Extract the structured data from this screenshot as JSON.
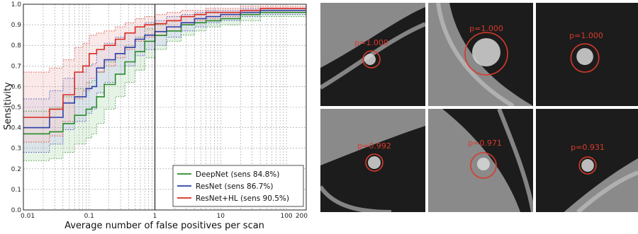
{
  "chart_data": {
    "type": "line",
    "title": "",
    "xlabel": "Average number of false positives per scan",
    "ylabel": "Sensitivity",
    "xscale": "log",
    "xlim": [
      0.01,
      200
    ],
    "ylim": [
      0,
      1
    ],
    "grid": true,
    "legend_position": "bottom-right",
    "x_ticks": [
      {
        "v": 0.01,
        "label": "0.01"
      },
      {
        "v": 0.1,
        "label": "0.1"
      },
      {
        "v": 1,
        "label": "1"
      },
      {
        "v": 10,
        "label": "10"
      },
      {
        "v": 100,
        "label": "100"
      },
      {
        "v": 200,
        "label": "200"
      }
    ],
    "y_ticks": [
      "0.0",
      "0.1",
      "0.2",
      "0.3",
      "0.4",
      "0.5",
      "0.6",
      "0.7",
      "0.8",
      "0.9",
      "1.0"
    ],
    "reference_line_x": 1,
    "series": [
      {
        "name": "DeepNet (sens 84.8%)",
        "color": "#2a8a2a",
        "band_color": "#c8e6c8",
        "x": [
          0.01,
          0.018,
          0.025,
          0.04,
          0.06,
          0.09,
          0.11,
          0.13,
          0.17,
          0.25,
          0.35,
          0.5,
          0.7,
          1.0,
          1.5,
          2.5,
          4,
          6,
          10,
          20,
          40,
          200
        ],
        "y": [
          0.37,
          0.37,
          0.38,
          0.42,
          0.46,
          0.49,
          0.5,
          0.55,
          0.61,
          0.66,
          0.72,
          0.77,
          0.82,
          0.848,
          0.87,
          0.9,
          0.91,
          0.92,
          0.93,
          0.95,
          0.96,
          0.96
        ],
        "lower": [
          0.24,
          0.24,
          0.25,
          0.28,
          0.32,
          0.35,
          0.37,
          0.42,
          0.49,
          0.55,
          0.62,
          0.68,
          0.74,
          0.78,
          0.82,
          0.85,
          0.87,
          0.89,
          0.9,
          0.92,
          0.94,
          0.94
        ],
        "upper": [
          0.48,
          0.48,
          0.5,
          0.55,
          0.59,
          0.62,
          0.63,
          0.67,
          0.72,
          0.76,
          0.8,
          0.84,
          0.88,
          0.9,
          0.92,
          0.94,
          0.95,
          0.96,
          0.96,
          0.97,
          0.98,
          0.98
        ]
      },
      {
        "name": "ResNet (sens 86.7%)",
        "color": "#2c3ea8",
        "band_color": "#ccd0ee",
        "x": [
          0.01,
          0.018,
          0.025,
          0.04,
          0.06,
          0.09,
          0.11,
          0.13,
          0.17,
          0.25,
          0.35,
          0.5,
          0.7,
          1.0,
          1.5,
          2.5,
          4,
          6,
          10,
          20,
          40,
          200
        ],
        "y": [
          0.4,
          0.4,
          0.45,
          0.52,
          0.55,
          0.59,
          0.6,
          0.69,
          0.73,
          0.76,
          0.79,
          0.83,
          0.85,
          0.867,
          0.89,
          0.91,
          0.93,
          0.94,
          0.95,
          0.96,
          0.97,
          0.97
        ],
        "lower": [
          0.28,
          0.28,
          0.32,
          0.39,
          0.43,
          0.47,
          0.49,
          0.57,
          0.62,
          0.66,
          0.7,
          0.75,
          0.78,
          0.8,
          0.84,
          0.87,
          0.89,
          0.91,
          0.92,
          0.94,
          0.95,
          0.95
        ],
        "upper": [
          0.54,
          0.54,
          0.58,
          0.64,
          0.67,
          0.7,
          0.71,
          0.78,
          0.81,
          0.84,
          0.86,
          0.89,
          0.91,
          0.92,
          0.94,
          0.95,
          0.96,
          0.97,
          0.97,
          0.98,
          0.98,
          0.98
        ]
      },
      {
        "name": "ResNet+HL (sens 90.5%)",
        "color": "#d62a20",
        "band_color": "#f3cfcb",
        "x": [
          0.01,
          0.018,
          0.025,
          0.04,
          0.06,
          0.08,
          0.1,
          0.13,
          0.17,
          0.25,
          0.35,
          0.5,
          0.7,
          1.0,
          1.5,
          2.5,
          4,
          6,
          10,
          20,
          40,
          200
        ],
        "y": [
          0.45,
          0.45,
          0.49,
          0.56,
          0.67,
          0.7,
          0.76,
          0.78,
          0.8,
          0.83,
          0.86,
          0.89,
          0.9,
          0.905,
          0.92,
          0.94,
          0.95,
          0.96,
          0.96,
          0.97,
          0.98,
          0.98
        ],
        "lower": [
          0.33,
          0.33,
          0.36,
          0.43,
          0.54,
          0.58,
          0.64,
          0.67,
          0.7,
          0.74,
          0.78,
          0.82,
          0.84,
          0.85,
          0.87,
          0.9,
          0.92,
          0.93,
          0.94,
          0.95,
          0.96,
          0.96
        ],
        "upper": [
          0.67,
          0.67,
          0.69,
          0.73,
          0.79,
          0.81,
          0.85,
          0.86,
          0.87,
          0.89,
          0.91,
          0.93,
          0.94,
          0.95,
          0.96,
          0.97,
          0.97,
          0.98,
          0.98,
          0.99,
          0.99,
          0.99
        ]
      }
    ]
  },
  "ct_patches": [
    {
      "label": "p=1.000",
      "bg_color": "#2a2a2a"
    },
    {
      "label": "p=1.000",
      "bg_color": "#262626"
    },
    {
      "label": "p=1.000",
      "bg_color": "#222222"
    },
    {
      "label": "p=0.992",
      "bg_color": "#2b2b2b"
    },
    {
      "label": "p=0.971",
      "bg_color": "#303030"
    },
    {
      "label": "p=0.931",
      "bg_color": "#2e2e2e"
    }
  ],
  "colors": {
    "detection_circle": "#d93a2b",
    "reference_line": "#222222"
  }
}
